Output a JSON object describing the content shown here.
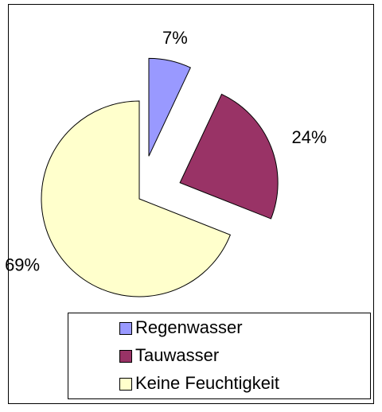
{
  "chart_data": {
    "type": "pie",
    "categories": [
      "Regenwasser",
      "Tauwasser",
      "Keine Feuchtigkeit"
    ],
    "values": [
      7,
      24,
      69
    ],
    "value_labels": [
      "7%",
      "24%",
      "69%"
    ],
    "colors": [
      "#9999ff",
      "#993366",
      "#ffffcc"
    ],
    "legend": "bottom"
  }
}
